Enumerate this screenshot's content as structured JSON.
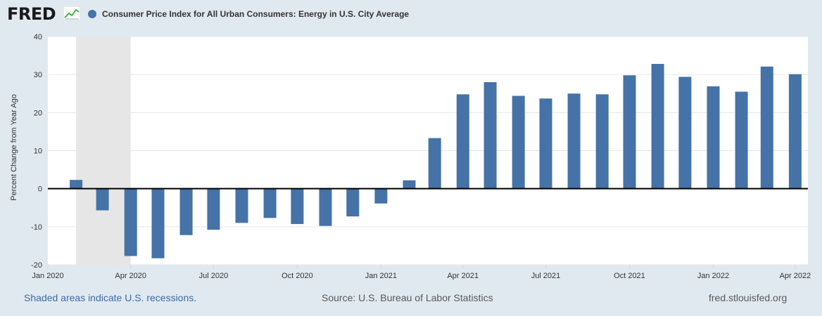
{
  "header": {
    "logo_text": "FRED",
    "series_title": "Consumer Price Index for All Urban Consumers: Energy in U.S. City Average",
    "series_color": "#4572a7"
  },
  "footer": {
    "recession_note": "Shaded areas indicate U.S. recessions.",
    "source": "Source: U.S. Bureau of Labor Statistics",
    "site": "fred.stlouisfed.org"
  },
  "chart_data": {
    "type": "bar",
    "title": "Consumer Price Index for All Urban Consumers: Energy in U.S. City Average",
    "ylabel": "Percent Change from Year Ago",
    "ylim": [
      -20,
      40
    ],
    "yticks": [
      -20,
      -10,
      0,
      10,
      20,
      30,
      40
    ],
    "x_axis_type": "date",
    "xlim": [
      "2020-01-01",
      "2022-04-15"
    ],
    "x_ticks": [
      {
        "date": "2020-01-01",
        "label": "Jan 2020"
      },
      {
        "date": "2020-04-01",
        "label": "Apr 2020"
      },
      {
        "date": "2020-07-01",
        "label": "Jul 2020"
      },
      {
        "date": "2020-10-01",
        "label": "Oct 2020"
      },
      {
        "date": "2021-01-01",
        "label": "Jan 2021"
      },
      {
        "date": "2021-04-01",
        "label": "Apr 2021"
      },
      {
        "date": "2021-07-01",
        "label": "Jul 2021"
      },
      {
        "date": "2021-10-01",
        "label": "Oct 2021"
      },
      {
        "date": "2022-01-01",
        "label": "Jan 2022"
      },
      {
        "date": "2022-04-01",
        "label": "Apr 2022"
      }
    ],
    "recession": {
      "start": "2020-02-01",
      "end": "2020-04-01",
      "color": "#e6e6e6"
    },
    "grid": true,
    "series": [
      {
        "color": "#4572a7",
        "x": [
          "2020-02-01",
          "2020-03-01",
          "2020-04-01",
          "2020-05-01",
          "2020-06-01",
          "2020-07-01",
          "2020-08-01",
          "2020-09-01",
          "2020-10-01",
          "2020-11-01",
          "2020-12-01",
          "2021-01-01",
          "2021-02-01",
          "2021-03-01",
          "2021-04-01",
          "2021-05-01",
          "2021-06-01",
          "2021-07-01",
          "2021-08-01",
          "2021-09-01",
          "2021-10-01",
          "2021-11-01",
          "2021-12-01",
          "2022-01-01",
          "2022-02-01",
          "2022-03-01",
          "2022-04-01"
        ],
        "values": [
          2.3,
          -5.7,
          -17.7,
          -18.3,
          -12.2,
          -10.8,
          -9.0,
          -7.7,
          -9.3,
          -9.8,
          -7.3,
          -3.9,
          2.2,
          13.3,
          24.8,
          28.0,
          24.4,
          23.7,
          25.0,
          24.8,
          29.8,
          32.8,
          29.4,
          26.9,
          25.5,
          32.1,
          30.1
        ]
      }
    ]
  }
}
